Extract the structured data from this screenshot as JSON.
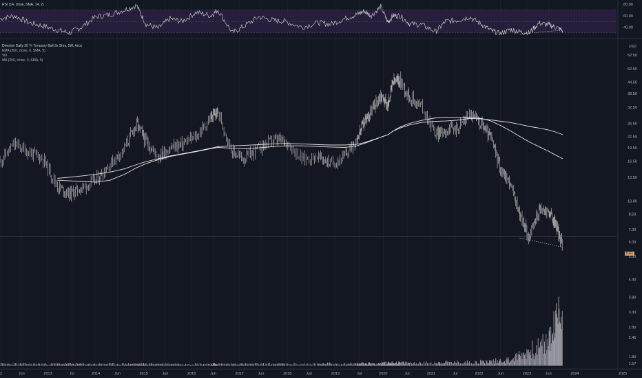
{
  "colors": {
    "background": "#131722",
    "grid": "#1e2230",
    "text": "#b2b5be",
    "rsi_band": "#2a2040",
    "rsi_line": "#c8c8c8",
    "candle": "#d0d0d0",
    "ema_line": "#e8e8e8",
    "ma_line": "#e8e8e8",
    "volume": "#a0a0a8",
    "price_tag": "#d9a15b",
    "axis_line": "#2a2e39"
  },
  "rsi_pane": {
    "title": "RSI (14, close, SMA, 14, 2)",
    "ticks": [
      "80.00",
      "60.00",
      "40.00"
    ],
    "tick_values": [
      80,
      60,
      40
    ],
    "range": [
      25,
      85
    ],
    "band": [
      30,
      70
    ]
  },
  "price_pane": {
    "title": "Direxion Daily 20 Yr Treasury Bull 3x Shrs, 5W, Arca",
    "currency": "USD",
    "indicators": [
      "EMA (200, close, 0, SMA, 5)",
      "Vol",
      "MA (200, close, 0, SMA, 5)"
    ],
    "current_price": "5.61",
    "ticks": [
      "62.50",
      "52.50",
      "44.50",
      "38.50",
      "32.50",
      "26.50",
      "22.50",
      "19.50",
      "16.50",
      "13.50",
      "10.00",
      "8.50",
      "7.00",
      "6.00",
      "5.00"
    ],
    "tick_values": [
      62.5,
      52.5,
      44.5,
      38.5,
      32.5,
      26.5,
      22.5,
      19.5,
      16.5,
      13.5,
      10,
      8.5,
      7,
      6,
      5
    ]
  },
  "volume_pane": {
    "ticks": [
      "4.40",
      "3.80",
      "3.30",
      "2.80",
      "2.45",
      "1.80",
      "1.57"
    ],
    "tick_values": [
      4.4,
      3.8,
      3.3,
      2.8,
      2.45,
      1.8,
      1.57
    ]
  },
  "x_axis": {
    "labels": [
      "12",
      "Jun",
      "2013",
      "Jul",
      "2014",
      "Jun",
      "2015",
      "Jun",
      "2016",
      "Jun",
      "2017",
      "Jun",
      "2018",
      "Jun",
      "2019",
      "Jul",
      "2020",
      "Jul",
      "2021",
      "Jul",
      "2022",
      "Jun",
      "2023",
      "Jun",
      "2024",
      "2025"
    ],
    "label_dates": [
      2012.0,
      2012.45,
      2013.0,
      2013.5,
      2014.0,
      2014.45,
      2015.0,
      2015.45,
      2016.0,
      2016.45,
      2017.0,
      2017.45,
      2018.0,
      2018.45,
      2019.0,
      2019.5,
      2020.0,
      2020.5,
      2021.0,
      2021.5,
      2022.0,
      2022.45,
      2023.0,
      2023.45,
      2024.0,
      2025.0
    ]
  },
  "chart_data": {
    "type": "line",
    "title": "Direxion Daily 20 Yr Treasury Bull 3x Shrs, 5W, Arca",
    "y_scale": "log",
    "x": [
      2012.0,
      2012.3,
      2012.6,
      2012.9,
      2013.2,
      2013.45,
      2013.7,
      2014.0,
      2014.3,
      2014.6,
      2014.85,
      2015.05,
      2015.3,
      2015.55,
      2015.8,
      2016.1,
      2016.4,
      2016.55,
      2016.85,
      2017.1,
      2017.4,
      2017.7,
      2017.95,
      2018.3,
      2018.65,
      2018.9,
      2019.2,
      2019.45,
      2019.6,
      2019.75,
      2019.95,
      2020.1,
      2020.2,
      2020.35,
      2020.55,
      2020.8,
      2021.1,
      2021.3,
      2021.55,
      2021.8,
      2022.05,
      2022.25,
      2022.45,
      2022.65,
      2022.85,
      2023.05,
      2023.25,
      2023.45,
      2023.6,
      2023.75
    ],
    "series": [
      {
        "values": [
          16.5,
          20.5,
          18.5,
          17.0,
          12.0,
          11.0,
          11.8,
          13.0,
          16.0,
          19.5,
          26.5,
          21.0,
          17.5,
          19.5,
          20.5,
          22.5,
          28.5,
          30.5,
          18.5,
          17.0,
          19.5,
          21.5,
          21.5,
          17.0,
          17.5,
          16.0,
          17.5,
          22.0,
          27.0,
          31.0,
          38.0,
          33.0,
          44.5,
          45.5,
          37.0,
          33.0,
          23.0,
          24.5,
          25.0,
          30.0,
          26.5,
          22.0,
          15.0,
          12.5,
          8.5,
          6.3,
          9.0,
          8.8,
          7.5,
          5.61
        ]
      },
      {
        "name": "EMA (200, close, 0, SMA, 5)",
        "values": [
          null,
          null,
          null,
          null,
          13.0,
          12.9,
          12.8,
          12.7,
          13.0,
          14.0,
          15.2,
          16.0,
          16.8,
          17.5,
          18.0,
          18.6,
          19.3,
          19.6,
          19.4,
          19.3,
          19.5,
          19.8,
          20.0,
          20.0,
          19.8,
          19.7,
          19.6,
          20.0,
          20.6,
          21.3,
          22.3,
          23.0,
          24.0,
          25.0,
          26.0,
          26.8,
          27.2,
          27.3,
          27.6,
          28.2,
          28.0,
          27.7,
          27.2,
          26.8,
          26.2,
          25.5,
          25.0,
          24.4,
          23.8,
          23.0
        ]
      },
      {
        "name": "MA (200, close, 0, SMA, 5)",
        "values": [
          null,
          null,
          null,
          null,
          13.3,
          13.5,
          13.7,
          14.0,
          14.4,
          15.0,
          15.8,
          16.4,
          17.0,
          17.6,
          18.1,
          18.7,
          19.4,
          19.8,
          20.0,
          20.1,
          20.3,
          20.5,
          20.6,
          20.5,
          20.3,
          20.2,
          20.2,
          20.4,
          20.8,
          21.4,
          22.3,
          23.0,
          24.0,
          25.3,
          26.5,
          27.5,
          28.4,
          28.6,
          28.5,
          28.6,
          28.2,
          27.3,
          25.8,
          24.2,
          22.5,
          21.0,
          19.8,
          18.7,
          17.8,
          17.0
        ]
      }
    ],
    "rsi": [
      55,
      60,
      48,
      42,
      35,
      30,
      40,
      58,
      62,
      70,
      78,
      45,
      38,
      55,
      50,
      66,
      60,
      70,
      30,
      42,
      58,
      52,
      50,
      40,
      48,
      45,
      55,
      62,
      68,
      60,
      76,
      48,
      60,
      60,
      46,
      44,
      32,
      50,
      52,
      58,
      45,
      34,
      28,
      36,
      32,
      30,
      47,
      44,
      40,
      34
    ],
    "volume": [
      1.56,
      1.56,
      1.56,
      1.56,
      1.56,
      1.56,
      1.56,
      1.56,
      1.56,
      1.56,
      1.56,
      1.56,
      1.56,
      1.56,
      1.56,
      1.56,
      1.56,
      1.56,
      1.56,
      1.56,
      1.56,
      1.56,
      1.56,
      1.56,
      1.56,
      1.57,
      1.57,
      1.57,
      1.57,
      1.58,
      1.58,
      1.59,
      1.6,
      1.6,
      1.59,
      1.59,
      1.6,
      1.61,
      1.61,
      1.62,
      1.63,
      1.64,
      1.68,
      1.7,
      1.85,
      2.0,
      2.1,
      2.3,
      2.9,
      3.4
    ]
  }
}
